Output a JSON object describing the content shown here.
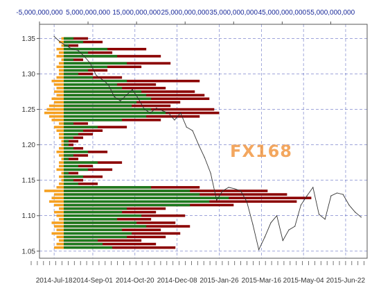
{
  "watermark": "FX168",
  "chart_data": {
    "type": "bar",
    "title": "",
    "xlabel": "",
    "ylabel": "",
    "grid": true,
    "top_axis": {
      "range": [
        -5000000000,
        62500000000
      ],
      "ticks": [
        -5000000000,
        5000000000,
        15000000000,
        25000000000,
        35000000000,
        45000000000,
        55000000000
      ],
      "tick_labels": [
        "-5,000,000,000",
        "5,000,000,000",
        "15,000,000,000",
        "25,000,000,000",
        "35,000,000,000",
        "45,000,000,000",
        "55,000,000,000"
      ]
    },
    "left_axis": {
      "range": [
        1.04,
        1.37
      ],
      "ticks": [
        1.05,
        1.1,
        1.15,
        1.2,
        1.25,
        1.3,
        1.35
      ],
      "tick_labels": [
        "1.05",
        "1.10",
        "1.15",
        "1.20",
        "1.25",
        "1.30",
        "1.35"
      ]
    },
    "bottom_axis": {
      "range": [
        "2014-07-01",
        "2015-07-17"
      ],
      "ticks": [
        "2014-07-18",
        "2014-09-01",
        "2014-10-20",
        "2014-12-08",
        "2015-01-26",
        "2015-03-16",
        "2015-05-04",
        "2015-06-22"
      ],
      "tick_labels": [
        "2014-Jul-18",
        "2014-Sep-01",
        "2014-Oct-20",
        "2014-Dec-08",
        "2015-Jan-26",
        "2015-Mar-16",
        "2015-May-04",
        "2015-Jun-22"
      ]
    },
    "colors": {
      "total": "#8b0000",
      "green": "#1e7a1e",
      "orange": "#f5a020",
      "grid": "#2233aa",
      "price": "#333333"
    },
    "volume_profile": {
      "price_levels": [
        1.055,
        1.06,
        1.065,
        1.07,
        1.075,
        1.08,
        1.085,
        1.09,
        1.095,
        1.1,
        1.105,
        1.11,
        1.115,
        1.12,
        1.125,
        1.13,
        1.135,
        1.14,
        1.145,
        1.15,
        1.155,
        1.16,
        1.165,
        1.17,
        1.175,
        1.18,
        1.185,
        1.19,
        1.195,
        1.2,
        1.205,
        1.21,
        1.215,
        1.22,
        1.225,
        1.23,
        1.235,
        1.24,
        1.245,
        1.25,
        1.255,
        1.26,
        1.265,
        1.27,
        1.275,
        1.28,
        1.285,
        1.29,
        1.295,
        1.3,
        1.305,
        1.31,
        1.315,
        1.32,
        1.325,
        1.33,
        1.335,
        1.34,
        1.345,
        1.35
      ],
      "total": [
        23000000000,
        19000000000,
        16000000000,
        21000000000,
        24000000000,
        20000000000,
        26000000000,
        23000000000,
        18000000000,
        25000000000,
        19000000000,
        21000000000,
        35000000000,
        48000000000,
        51000000000,
        46000000000,
        42000000000,
        28000000000,
        7000000000,
        4000000000,
        8000000000,
        3000000000,
        10000000000,
        6000000000,
        12000000000,
        3000000000,
        5000000000,
        9000000000,
        4000000000,
        2000000000,
        3000000000,
        4000000000,
        6000000000,
        8000000000,
        13000000000,
        5000000000,
        20000000000,
        28000000000,
        32000000000,
        31000000000,
        22000000000,
        24000000000,
        30000000000,
        29000000000,
        27000000000,
        21000000000,
        19000000000,
        28000000000,
        12000000000,
        6000000000,
        9000000000,
        16000000000,
        22000000000,
        4000000000,
        20000000000,
        10000000000,
        17000000000,
        3000000000,
        8000000000,
        5000000000
      ],
      "green": [
        10000000000,
        8000000000,
        7000000000,
        13000000000,
        14000000000,
        12000000000,
        17000000000,
        15000000000,
        11000000000,
        16000000000,
        12000000000,
        13000000000,
        26000000000,
        30000000000,
        34000000000,
        28000000000,
        26000000000,
        18000000000,
        3000000000,
        2000000000,
        4000000000,
        1000000000,
        5000000000,
        3000000000,
        7000000000,
        1000000000,
        2000000000,
        5000000000,
        2000000000,
        1000000000,
        1000000000,
        2000000000,
        3000000000,
        4000000000,
        7000000000,
        2000000000,
        12000000000,
        17000000000,
        21000000000,
        18000000000,
        14000000000,
        15000000000,
        18000000000,
        17000000000,
        16000000000,
        12000000000,
        11000000000,
        13000000000,
        6000000000,
        3000000000,
        5000000000,
        9000000000,
        13000000000,
        2000000000,
        11000000000,
        5000000000,
        9000000000,
        1000000000,
        4000000000,
        2000000000
      ],
      "orange": [
        -2000000000,
        -1500000000,
        -1000000000,
        -1500000000,
        -2500000000,
        -1500000000,
        -2000000000,
        -2500000000,
        -1000000000,
        -1500000000,
        -2000000000,
        -1000000000,
        -2000000000,
        -3000000000,
        -2500000000,
        -2000000000,
        -4000000000,
        -1500000000,
        -1000000000,
        -500000000,
        -1000000000,
        -500000000,
        -1500000000,
        -1000000000,
        -1000000000,
        -500000000,
        -1000000000,
        -1500000000,
        -1000000000,
        -500000000,
        -500000000,
        -1000000000,
        -1000000000,
        -1500000000,
        -2000000000,
        -1000000000,
        -2500000000,
        -3000000000,
        -4000000000,
        -3500000000,
        -3000000000,
        -2000000000,
        -2500000000,
        -1500000000,
        -2000000000,
        -1500000000,
        -2000000000,
        -2500000000,
        -1500000000,
        -1000000000,
        -1000000000,
        -1500000000,
        -1000000000,
        -500000000,
        -1500000000,
        -1000000000,
        -1500000000,
        -500000000,
        -1000000000,
        -500000000
      ]
    },
    "price_series": {
      "x": [
        "2014-07-18",
        "2014-07-25",
        "2014-08-01",
        "2014-08-08",
        "2014-08-15",
        "2014-08-22",
        "2014-08-29",
        "2014-09-05",
        "2014-09-12",
        "2014-09-19",
        "2014-09-26",
        "2014-10-03",
        "2014-10-10",
        "2014-10-17",
        "2014-10-24",
        "2014-10-31",
        "2014-11-07",
        "2014-11-14",
        "2014-11-21",
        "2014-11-28",
        "2014-12-05",
        "2014-12-12",
        "2014-12-19",
        "2014-12-26",
        "2015-01-02",
        "2015-01-09",
        "2015-01-16",
        "2015-01-23",
        "2015-01-30",
        "2015-02-06",
        "2015-02-13",
        "2015-02-20",
        "2015-02-27",
        "2015-03-06",
        "2015-03-13",
        "2015-03-20",
        "2015-03-27",
        "2015-04-03",
        "2015-04-10",
        "2015-04-17",
        "2015-04-24",
        "2015-05-01",
        "2015-05-08",
        "2015-05-15",
        "2015-05-22",
        "2015-05-29",
        "2015-06-05",
        "2015-06-12",
        "2015-06-19",
        "2015-06-26",
        "2015-07-03",
        "2015-07-10"
      ],
      "y": [
        1.353,
        1.345,
        1.34,
        1.335,
        1.333,
        1.325,
        1.315,
        1.298,
        1.292,
        1.285,
        1.268,
        1.262,
        1.27,
        1.278,
        1.265,
        1.25,
        1.245,
        1.252,
        1.248,
        1.245,
        1.235,
        1.245,
        1.225,
        1.22,
        1.2,
        1.182,
        1.16,
        1.122,
        1.135,
        1.14,
        1.138,
        1.135,
        1.12,
        1.088,
        1.052,
        1.07,
        1.09,
        1.1,
        1.065,
        1.08,
        1.085,
        1.115,
        1.128,
        1.14,
        1.102,
        1.095,
        1.128,
        1.132,
        1.13,
        1.115,
        1.105,
        1.098
      ]
    }
  }
}
